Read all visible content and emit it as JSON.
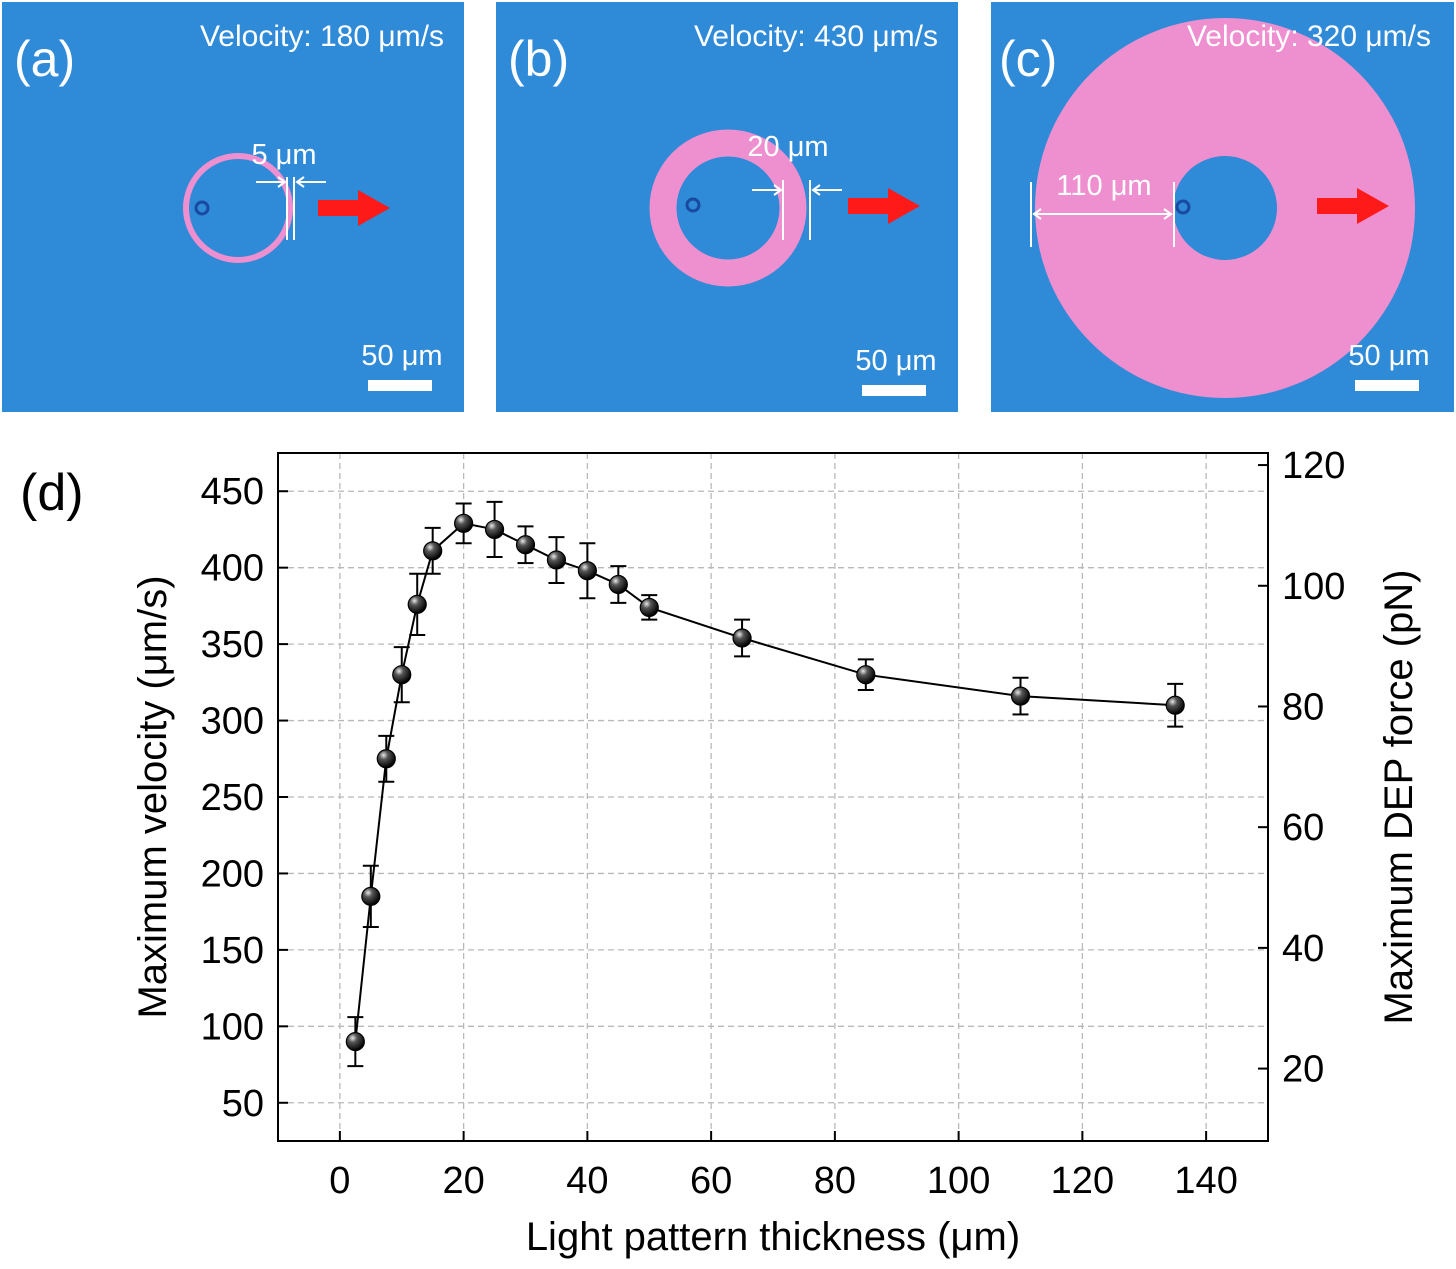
{
  "panels": [
    {
      "label": "(a)",
      "velocity": "Velocity: 180 μm/s",
      "thickness": "5 μm",
      "scale": "50 μm"
    },
    {
      "label": "(b)",
      "velocity": "Velocity: 430 μm/s",
      "thickness": "20 μm",
      "scale": "50 μm"
    },
    {
      "label": "(c)",
      "velocity": "Velocity: 320 μm/s",
      "thickness": "110 μm",
      "scale": "50 μm"
    }
  ],
  "colors": {
    "background": "#2f8ad8",
    "ring": "#ee8fcf",
    "arrow": "#ff1a1a",
    "bead": "#1a4aa0"
  },
  "chart_data": {
    "type": "line",
    "panel_label": "(d)",
    "xlabel": "Light pattern thickness (μm)",
    "ylabel": "Maximum velocity (μm/s)",
    "y2label": "Maximum DEP force (pN)",
    "xlim": [
      -10,
      150
    ],
    "ylim": [
      25,
      475
    ],
    "y2lim": [
      8,
      122
    ],
    "xticks": [
      0,
      20,
      40,
      60,
      80,
      100,
      120,
      140
    ],
    "yticks": [
      50,
      100,
      150,
      200,
      250,
      300,
      350,
      400,
      450
    ],
    "y2ticks": [
      20,
      40,
      60,
      80,
      100,
      120
    ],
    "grid": true,
    "series": [
      {
        "x": [
          2.5,
          5,
          7.5,
          10,
          12.5,
          15,
          20,
          25,
          30,
          35,
          40,
          45,
          50,
          65,
          85,
          110,
          135
        ],
        "y": [
          90,
          185,
          275,
          330,
          376,
          411,
          429,
          425,
          415,
          405,
          398,
          389,
          374,
          354,
          330,
          316,
          310
        ],
        "yerr": [
          16,
          20,
          15,
          18,
          20,
          15,
          13,
          18,
          12,
          15,
          18,
          12,
          8,
          12,
          10,
          12,
          14
        ]
      }
    ]
  }
}
